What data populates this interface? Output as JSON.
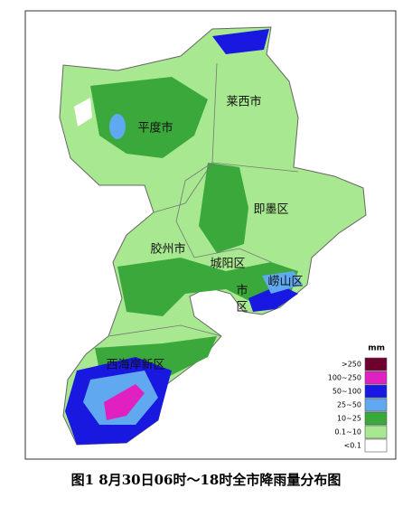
{
  "map": {
    "unit": "mm",
    "regions": [
      {
        "label": "平度市"
      },
      {
        "label": "莱西市"
      },
      {
        "label": "即墨区"
      },
      {
        "label": "胶州市"
      },
      {
        "label": "城阳区"
      },
      {
        "label": "崂山区"
      },
      {
        "label": "市"
      },
      {
        "label": "区"
      },
      {
        "label": "西海岸新区"
      }
    ],
    "legend": [
      {
        "label": ">250",
        "color": "#6e0030"
      },
      {
        "label": "100~250",
        "color": "#e020c0"
      },
      {
        "label": "50~100",
        "color": "#1818e0"
      },
      {
        "label": "25~50",
        "color": "#60a8f0"
      },
      {
        "label": "10~25",
        "color": "#3aa83a"
      },
      {
        "label": "0.1~10",
        "color": "#a8e890"
      },
      {
        "label": "<0.1",
        "color": "#ffffff"
      }
    ]
  },
  "caption": "图1  8月30日06时～18时全市降雨量分布图"
}
